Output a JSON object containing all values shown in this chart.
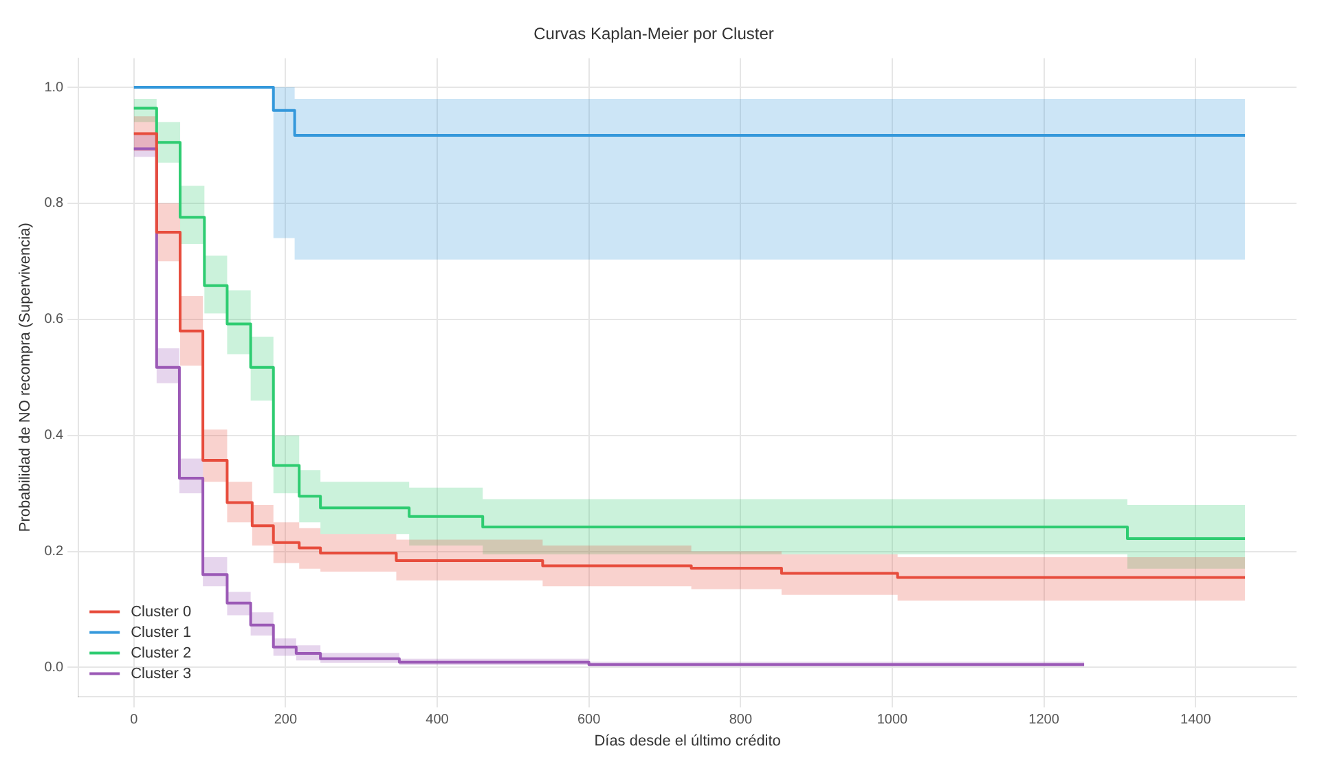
{
  "chart_data": {
    "type": "step",
    "title": "Curvas Kaplan-Meier por Cluster",
    "xlabel": "Días desde el último crédito",
    "ylabel": "Probabilidad de NO recompra (Supervivencia)",
    "xlim": [
      -73,
      1533
    ],
    "xticks": [
      0,
      200,
      400,
      600,
      800,
      1000,
      1200,
      1400
    ],
    "ylim": [
      -0.05,
      1.05
    ],
    "yticks": [
      {
        "value": 0,
        "label": "0.0"
      },
      0.2,
      0.4,
      0.6,
      0.8,
      {
        "value": 1,
        "label": "1.0"
      }
    ],
    "grid": true,
    "legend": "lower left",
    "series": [
      {
        "name": "Cluster 0",
        "color": "#e74c3c",
        "x": [
          0,
          30,
          61,
          91,
          123,
          156,
          184,
          218,
          246,
          346,
          539,
          735,
          854,
          1007,
          1465
        ],
        "values": [
          0.92,
          0.75,
          0.58,
          0.357,
          0.284,
          0.244,
          0.215,
          0.206,
          0.197,
          0.184,
          0.175,
          0.171,
          0.162,
          0.155,
          0.155
        ],
        "lower": [
          0.89,
          0.7,
          0.52,
          0.32,
          0.25,
          0.21,
          0.18,
          0.17,
          0.165,
          0.15,
          0.14,
          0.135,
          0.125,
          0.115,
          0.115
        ],
        "upper": [
          0.95,
          0.8,
          0.64,
          0.41,
          0.32,
          0.28,
          0.25,
          0.24,
          0.23,
          0.22,
          0.21,
          0.2,
          0.195,
          0.19,
          0.19
        ]
      },
      {
        "name": "Cluster 1",
        "color": "#3498db",
        "x": [
          0,
          184,
          212,
          1465
        ],
        "values": [
          1.0,
          0.96,
          0.917,
          0.917
        ],
        "lower": [
          1.0,
          0.74,
          0.703,
          0.703
        ],
        "upper": [
          1.0,
          1.0,
          0.98,
          0.98
        ]
      },
      {
        "name": "Cluster 2",
        "color": "#2ecc71",
        "x": [
          0,
          30,
          61,
          93,
          123,
          154,
          184,
          218,
          246,
          363,
          460,
          1310,
          1465
        ],
        "values": [
          0.964,
          0.905,
          0.776,
          0.658,
          0.592,
          0.517,
          0.348,
          0.295,
          0.275,
          0.26,
          0.242,
          0.222,
          0.222
        ],
        "lower": [
          0.94,
          0.87,
          0.73,
          0.61,
          0.54,
          0.46,
          0.3,
          0.25,
          0.23,
          0.21,
          0.195,
          0.17,
          0.17
        ],
        "upper": [
          0.98,
          0.94,
          0.83,
          0.71,
          0.65,
          0.57,
          0.4,
          0.34,
          0.32,
          0.31,
          0.29,
          0.28,
          0.28
        ]
      },
      {
        "name": "Cluster 3",
        "color": "#9b59b6",
        "x": [
          0,
          30,
          60,
          91,
          123,
          154,
          184,
          214,
          246,
          350,
          600,
          1253
        ],
        "values": [
          0.894,
          0.517,
          0.326,
          0.16,
          0.111,
          0.073,
          0.035,
          0.024,
          0.015,
          0.009,
          0.005,
          0.005
        ],
        "lower": [
          0.88,
          0.49,
          0.3,
          0.14,
          0.09,
          0.055,
          0.02,
          0.012,
          0.008,
          0.004,
          0.002,
          0.002
        ],
        "upper": [
          0.92,
          0.55,
          0.36,
          0.19,
          0.13,
          0.095,
          0.05,
          0.038,
          0.025,
          0.015,
          0.01,
          0.01
        ]
      }
    ]
  }
}
